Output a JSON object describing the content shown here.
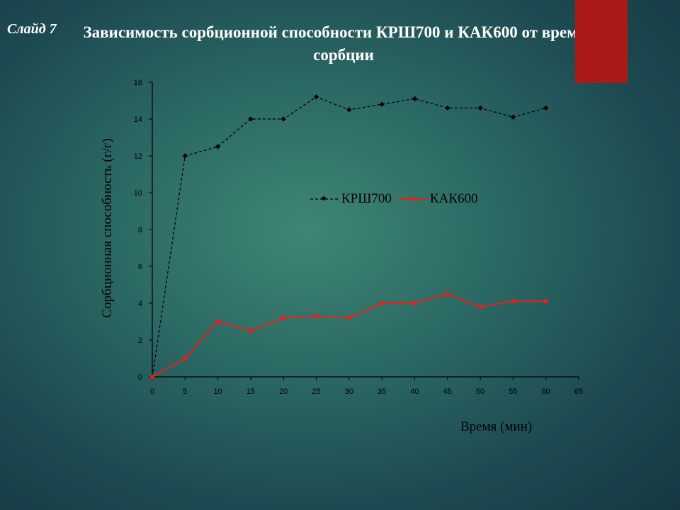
{
  "slide": {
    "label": "Слайд 7"
  },
  "title": "Зависимость сорбционной способности КРШ700 и КАК600 от времени сорбции",
  "colors": {
    "accent_tab": "#ab1a17",
    "series1": "#000000",
    "series2": "#e8201a"
  },
  "chart_data": {
    "type": "line",
    "title": "",
    "xlabel": "Время (мин)",
    "ylabel": "Сорбционная способность (г/г)",
    "x": [
      0,
      5,
      10,
      15,
      20,
      25,
      30,
      35,
      40,
      45,
      50,
      55,
      60
    ],
    "xlim": [
      0,
      65
    ],
    "ylim": [
      0,
      16
    ],
    "x_ticks": [
      0,
      5,
      10,
      15,
      20,
      25,
      30,
      35,
      40,
      45,
      50,
      55,
      60,
      65
    ],
    "y_ticks": [
      0,
      2,
      4,
      6,
      8,
      10,
      12,
      14,
      16
    ],
    "grid": false,
    "legend_position": "center",
    "series": [
      {
        "name": "КРШ700",
        "style": "dashed",
        "marker": "diamond",
        "color": "#000000",
        "values": [
          0,
          12,
          12.5,
          14,
          14,
          15.2,
          14.5,
          14.8,
          15.1,
          14.6,
          14.6,
          14.1,
          14.6
        ]
      },
      {
        "name": "КАК600",
        "style": "solid",
        "marker": "circle",
        "color": "#e8201a",
        "values": [
          0,
          1,
          3,
          2.5,
          3.2,
          3.3,
          3.2,
          4,
          4,
          4.5,
          3.8,
          4.1,
          4.1
        ]
      }
    ]
  }
}
